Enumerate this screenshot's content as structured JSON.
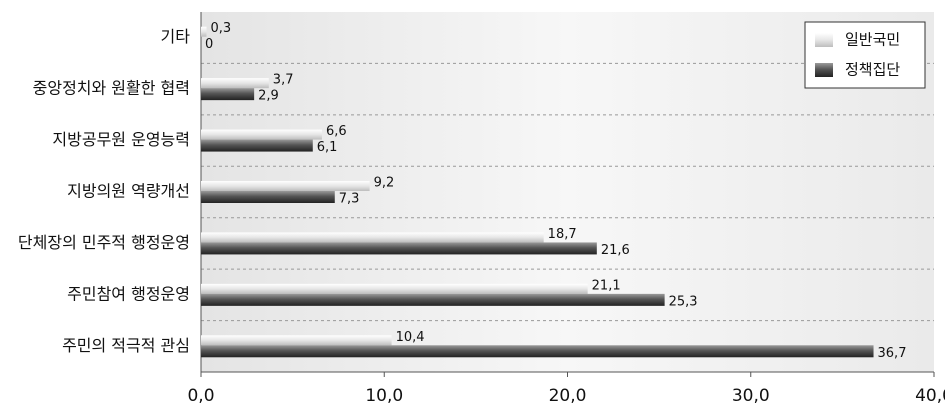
{
  "chart_data": {
    "type": "hbar",
    "categories": [
      "기타",
      "중앙정치와 원활한 협력",
      "지방공무원 운영능력",
      "지방의원 역량개선",
      "단체장의 민주적 행정운영",
      "주민참여 행정운영",
      "주민의 적극적 관심"
    ],
    "series": [
      {
        "name": "일반국민",
        "color": "#d8d8d8",
        "values": [
          0.3,
          3.7,
          6.6,
          9.2,
          18.7,
          21.1,
          10.4
        ],
        "value_labels": [
          "0,3",
          "3,7",
          "6,6",
          "9,2",
          "18,7",
          "21,1",
          "10,4"
        ]
      },
      {
        "name": "정책집단",
        "color": "#4a4a4a",
        "values": [
          0,
          2.9,
          6.1,
          7.3,
          21.6,
          25.3,
          36.7
        ],
        "value_labels": [
          "0",
          "2,9",
          "6,1",
          "7,3",
          "21,6",
          "25,3",
          "36,7"
        ]
      }
    ],
    "xlim": [
      0,
      40
    ],
    "xticks": [
      {
        "value": 0,
        "label": "0,0"
      },
      {
        "value": 10,
        "label": "10,0"
      },
      {
        "value": 20,
        "label": "20,0"
      },
      {
        "value": 30,
        "label": "30,0"
      },
      {
        "value": 40,
        "label": "40,0"
      }
    ],
    "legend": "top-right"
  }
}
